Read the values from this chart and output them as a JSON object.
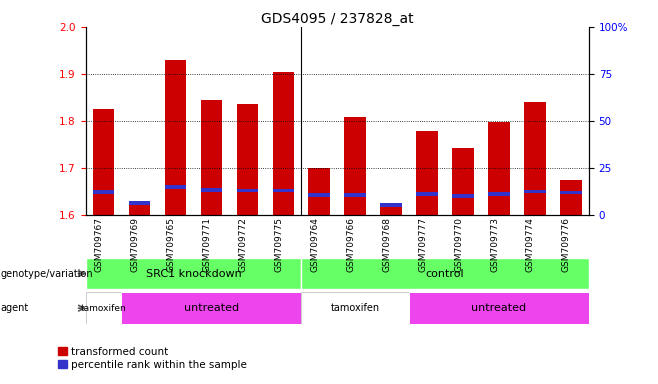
{
  "title": "GDS4095 / 237828_at",
  "samples": [
    "GSM709767",
    "GSM709769",
    "GSM709765",
    "GSM709771",
    "GSM709772",
    "GSM709775",
    "GSM709764",
    "GSM709766",
    "GSM709768",
    "GSM709777",
    "GSM709770",
    "GSM709773",
    "GSM709774",
    "GSM709776"
  ],
  "red_values": [
    1.825,
    1.63,
    1.93,
    1.845,
    1.835,
    1.905,
    1.7,
    1.808,
    1.62,
    1.778,
    1.742,
    1.798,
    1.84,
    1.675
  ],
  "blue_positions": [
    1.645,
    1.622,
    1.656,
    1.65,
    1.648,
    1.648,
    1.638,
    1.638,
    1.618,
    1.64,
    1.637,
    1.64,
    1.646,
    1.644
  ],
  "blue_heights": [
    0.008,
    0.008,
    0.008,
    0.008,
    0.008,
    0.008,
    0.008,
    0.008,
    0.008,
    0.008,
    0.008,
    0.008,
    0.008,
    0.008
  ],
  "ymin": 1.6,
  "ymax": 2.0,
  "yticks": [
    1.6,
    1.7,
    1.8,
    1.9,
    2.0
  ],
  "right_yticks": [
    0,
    25,
    50,
    75,
    100
  ],
  "right_yticklabels": [
    "0",
    "25",
    "50",
    "75",
    "100%"
  ],
  "bar_color": "#cc0000",
  "blue_color": "#3333cc",
  "background_color": "#ffffff",
  "genotype_color": "#66ff66",
  "agent_color_tamoxifen": "#ffffff",
  "agent_color_untreated": "#ee44ee",
  "title_fontsize": 10,
  "tick_fontsize": 7.5,
  "label_fontsize": 7.5
}
